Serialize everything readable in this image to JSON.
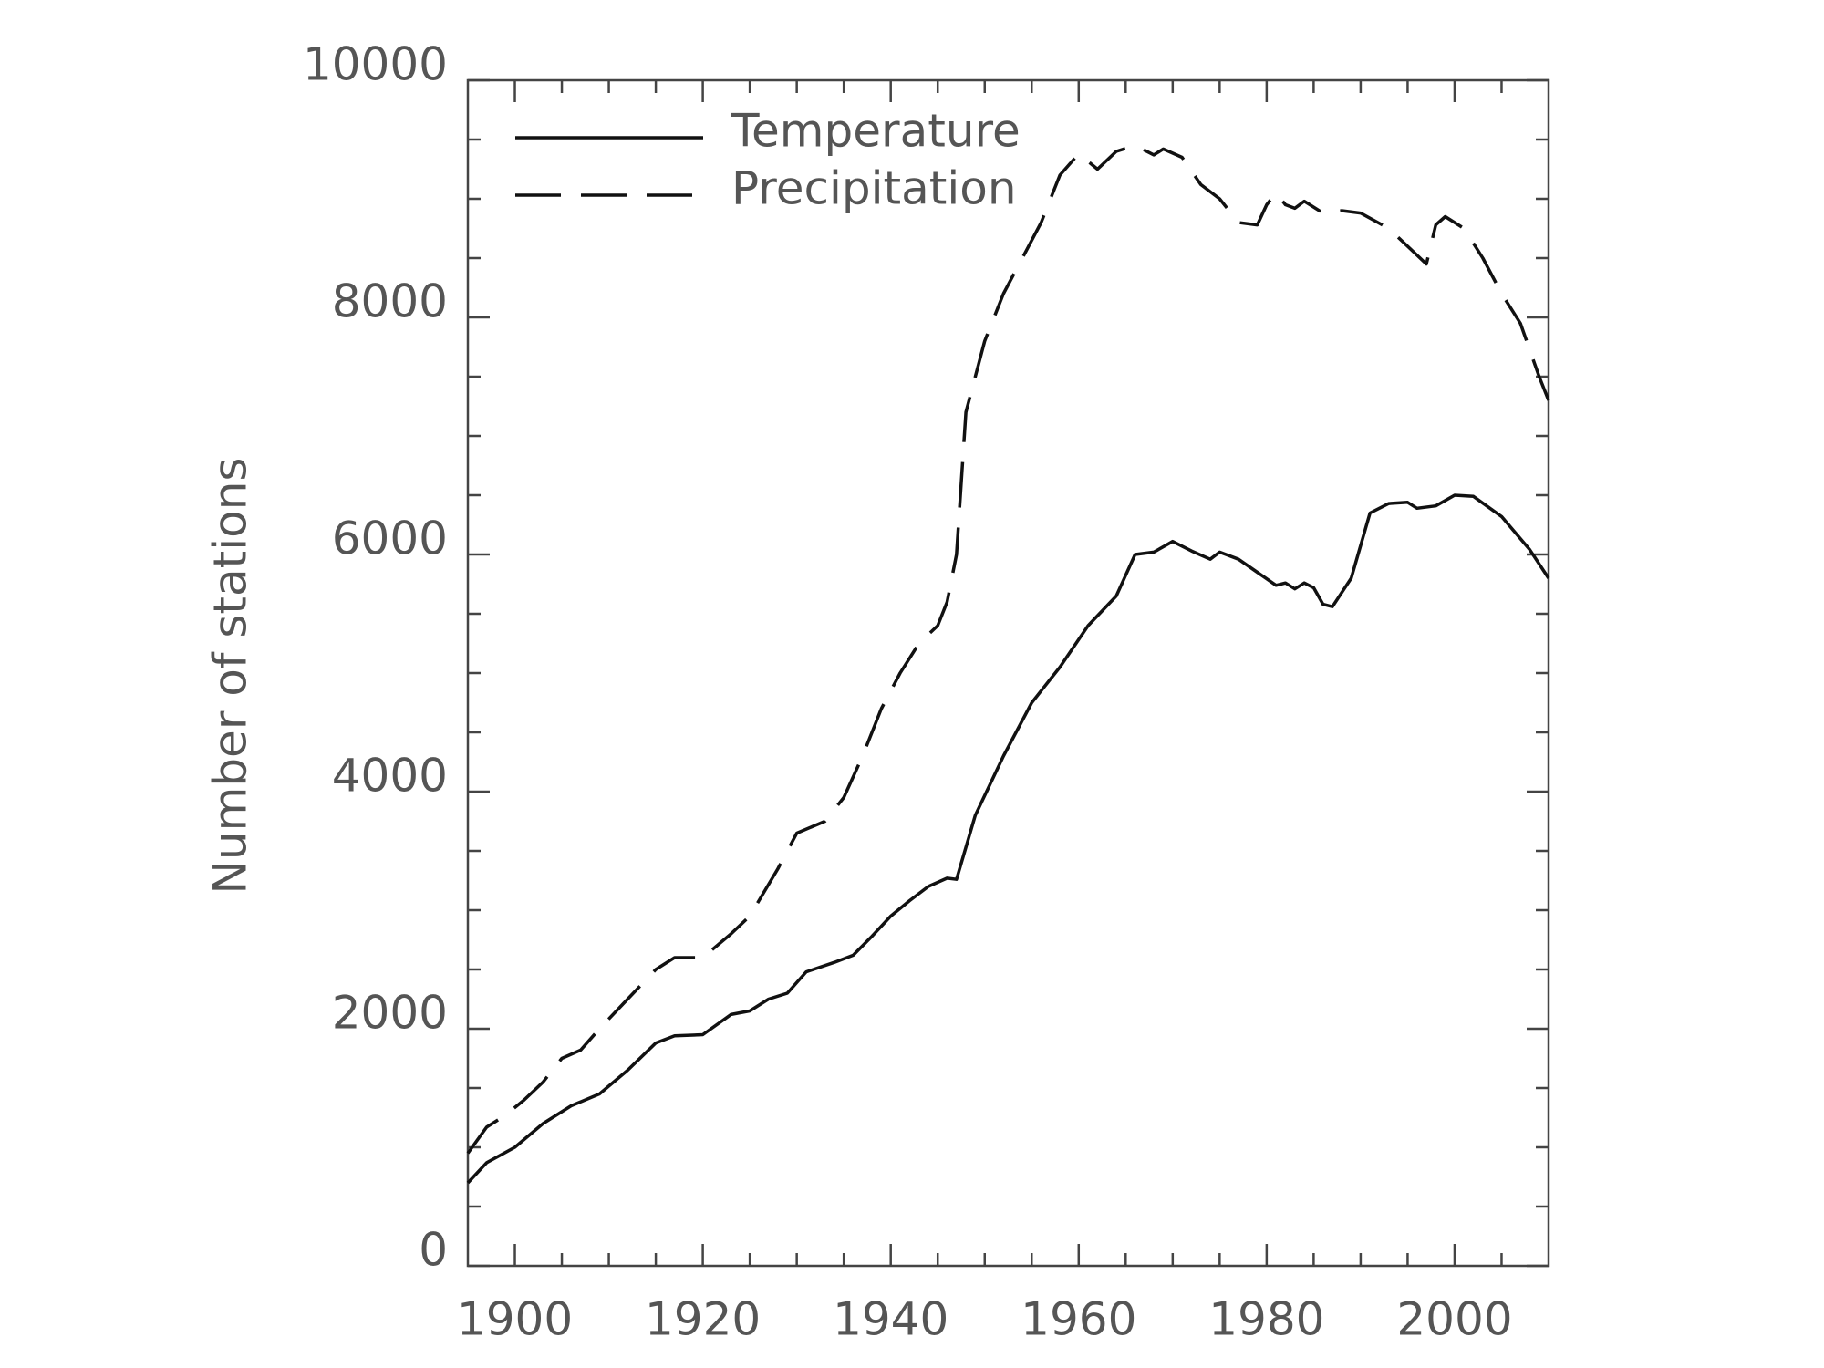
{
  "chart_data": {
    "type": "line",
    "ylabel": "Number of stations",
    "xlim": [
      1895,
      2010
    ],
    "ylim": [
      0,
      10000
    ],
    "xticks": [
      1900,
      1920,
      1940,
      1960,
      1980,
      2000
    ],
    "yticks": [
      0,
      2000,
      4000,
      6000,
      8000,
      10000
    ],
    "x_minor_ticks": [
      1905,
      1910,
      1915,
      1925,
      1930,
      1935,
      1945,
      1950,
      1955,
      1965,
      1970,
      1975,
      1985,
      1990,
      1995,
      2005
    ],
    "y_minor_ticks": [
      500,
      1000,
      1500,
      2500,
      3000,
      3500,
      4500,
      5000,
      5500,
      6500,
      7000,
      7500,
      8500,
      9000,
      9500
    ],
    "legend": "upper left",
    "series": [
      {
        "name": "Temperature",
        "color": "#111111",
        "dash": "solid",
        "x": [
          1895,
          1897,
          1900,
          1903,
          1906,
          1909,
          1912,
          1915,
          1917,
          1920,
          1923,
          1925,
          1927,
          1929,
          1931,
          1934,
          1936,
          1938,
          1940,
          1942,
          1944,
          1946,
          1947,
          1949,
          1952,
          1955,
          1958,
          1961,
          1964,
          1966,
          1968,
          1970,
          1972,
          1974,
          1975,
          1977,
          1979,
          1981,
          1982,
          1983,
          1984,
          1985,
          1986,
          1987,
          1989,
          1991,
          1993,
          1995,
          1996,
          1998,
          2000,
          2002,
          2005,
          2008,
          2010
        ],
        "values": [
          700,
          870,
          1000,
          1200,
          1350,
          1450,
          1650,
          1880,
          1940,
          1950,
          2120,
          2150,
          2250,
          2300,
          2480,
          2560,
          2620,
          2780,
          2950,
          3080,
          3200,
          3270,
          3260,
          3800,
          4300,
          4750,
          5050,
          5400,
          5650,
          6000,
          6020,
          6110,
          6030,
          5960,
          6020,
          5960,
          5850,
          5740,
          5760,
          5710,
          5760,
          5720,
          5580,
          5560,
          5800,
          6350,
          6430,
          6440,
          6390,
          6410,
          6500,
          6490,
          6320,
          6040,
          5800
        ]
      },
      {
        "name": "Precipitation",
        "color": "#111111",
        "dash": "dashed",
        "x": [
          1895,
          1897,
          1899,
          1901,
          1903,
          1905,
          1907,
          1909,
          1912,
          1915,
          1917,
          1920,
          1923,
          1925,
          1928,
          1930,
          1933,
          1935,
          1937,
          1939,
          1941,
          1943,
          1945,
          1946,
          1947,
          1948,
          1950,
          1952,
          1954,
          1956,
          1958,
          1960,
          1962,
          1964,
          1966,
          1968,
          1969,
          1971,
          1973,
          1975,
          1977,
          1979,
          1980,
          1981,
          1982,
          1983,
          1984,
          1986,
          1988,
          1990,
          1993,
          1995,
          1997,
          1998,
          1999,
          2001,
          2003,
          2005,
          2007,
          2009,
          2010
        ],
        "values": [
          950,
          1170,
          1270,
          1400,
          1550,
          1750,
          1820,
          2000,
          2250,
          2500,
          2600,
          2600,
          2800,
          2950,
          3350,
          3650,
          3750,
          3950,
          4300,
          4700,
          5000,
          5250,
          5400,
          5600,
          6000,
          7200,
          7800,
          8200,
          8500,
          8800,
          9200,
          9380,
          9250,
          9400,
          9450,
          9370,
          9420,
          9350,
          9120,
          9000,
          8800,
          8780,
          8950,
          9050,
          8950,
          8920,
          8980,
          8880,
          8900,
          8880,
          8750,
          8600,
          8450,
          8780,
          8850,
          8750,
          8500,
          8200,
          7950,
          7500,
          7300
        ]
      }
    ]
  }
}
